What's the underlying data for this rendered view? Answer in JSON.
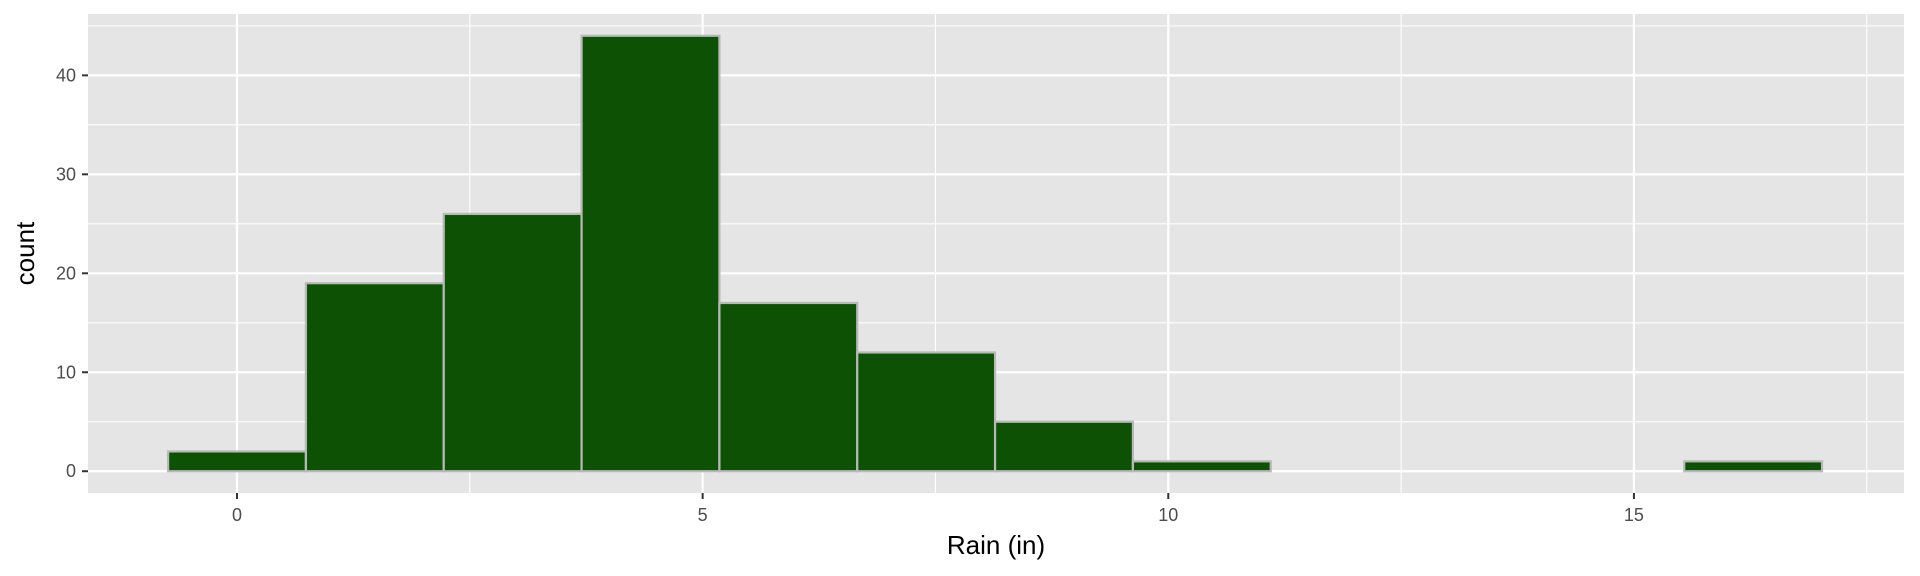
{
  "chart_data": {
    "type": "bar",
    "subtype": "histogram",
    "xlabel": "Rain (in)",
    "ylabel": "count",
    "xlim": [
      -1.6,
      17.9
    ],
    "ylim": [
      -2.2,
      46.2
    ],
    "x_ticks": [
      0,
      5,
      10,
      15
    ],
    "x_minor_ticks": [
      -2.5,
      2.5,
      7.5,
      12.5,
      17.5
    ],
    "y_ticks": [
      0,
      10,
      20,
      30,
      40
    ],
    "y_minor_ticks": [
      5,
      15,
      25,
      35,
      45
    ],
    "grid": true,
    "bins": [
      {
        "x0": -0.74,
        "x1": 0.74,
        "count": 2
      },
      {
        "x0": 0.74,
        "x1": 2.22,
        "count": 19
      },
      {
        "x0": 2.22,
        "x1": 3.7,
        "count": 26
      },
      {
        "x0": 3.7,
        "x1": 5.18,
        "count": 44
      },
      {
        "x0": 5.18,
        "x1": 6.66,
        "count": 17
      },
      {
        "x0": 6.66,
        "x1": 8.14,
        "count": 12
      },
      {
        "x0": 8.14,
        "x1": 9.62,
        "count": 5
      },
      {
        "x0": 9.62,
        "x1": 11.1,
        "count": 1
      },
      {
        "x0": 11.1,
        "x1": 12.58,
        "count": 0
      },
      {
        "x0": 12.58,
        "x1": 14.06,
        "count": 0
      },
      {
        "x0": 14.06,
        "x1": 15.54,
        "count": 0
      },
      {
        "x0": 15.54,
        "x1": 17.02,
        "count": 1
      }
    ],
    "colors": {
      "fill": "#0d5204",
      "outline": "#b8b8b8",
      "panel": "#e5e5e5",
      "grid": "#ffffff",
      "tick_text": "#4d4d4d"
    }
  }
}
